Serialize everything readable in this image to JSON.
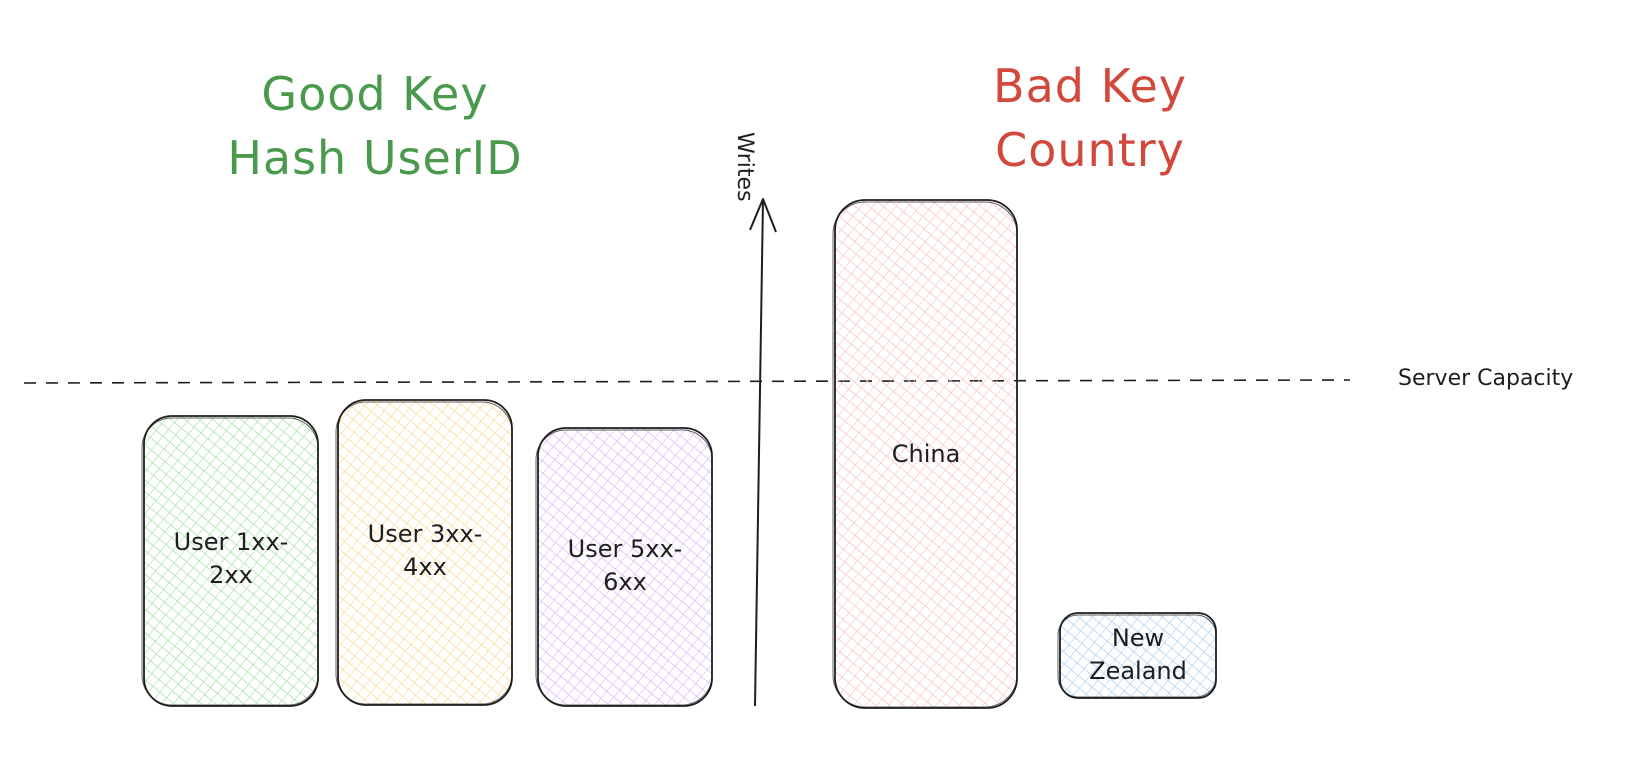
{
  "good_key": {
    "line1": "Good Key",
    "line2": "Hash UserID",
    "color": "#4a9a4e"
  },
  "bad_key": {
    "line1": "Bad Key",
    "line2": "Country",
    "color": "#d2493c"
  },
  "axis": {
    "label": "Writes"
  },
  "capacity": {
    "label": "Server Capacity"
  },
  "boxes": [
    {
      "label_line1": "User 1xx-",
      "label_line2": "2xx",
      "fill": "#b9f0bf"
    },
    {
      "label_line1": "User 3xx-",
      "label_line2": "4xx",
      "fill": "#fde7a8"
    },
    {
      "label_line1": "User 5xx-",
      "label_line2": "6xx",
      "fill": "#e3c9fb"
    },
    {
      "label_line1": "China",
      "label_line2": "",
      "fill": "#fbc9c9"
    },
    {
      "label_line1": "New",
      "label_line2": "Zealand",
      "fill": "#b8d8f5"
    }
  ]
}
